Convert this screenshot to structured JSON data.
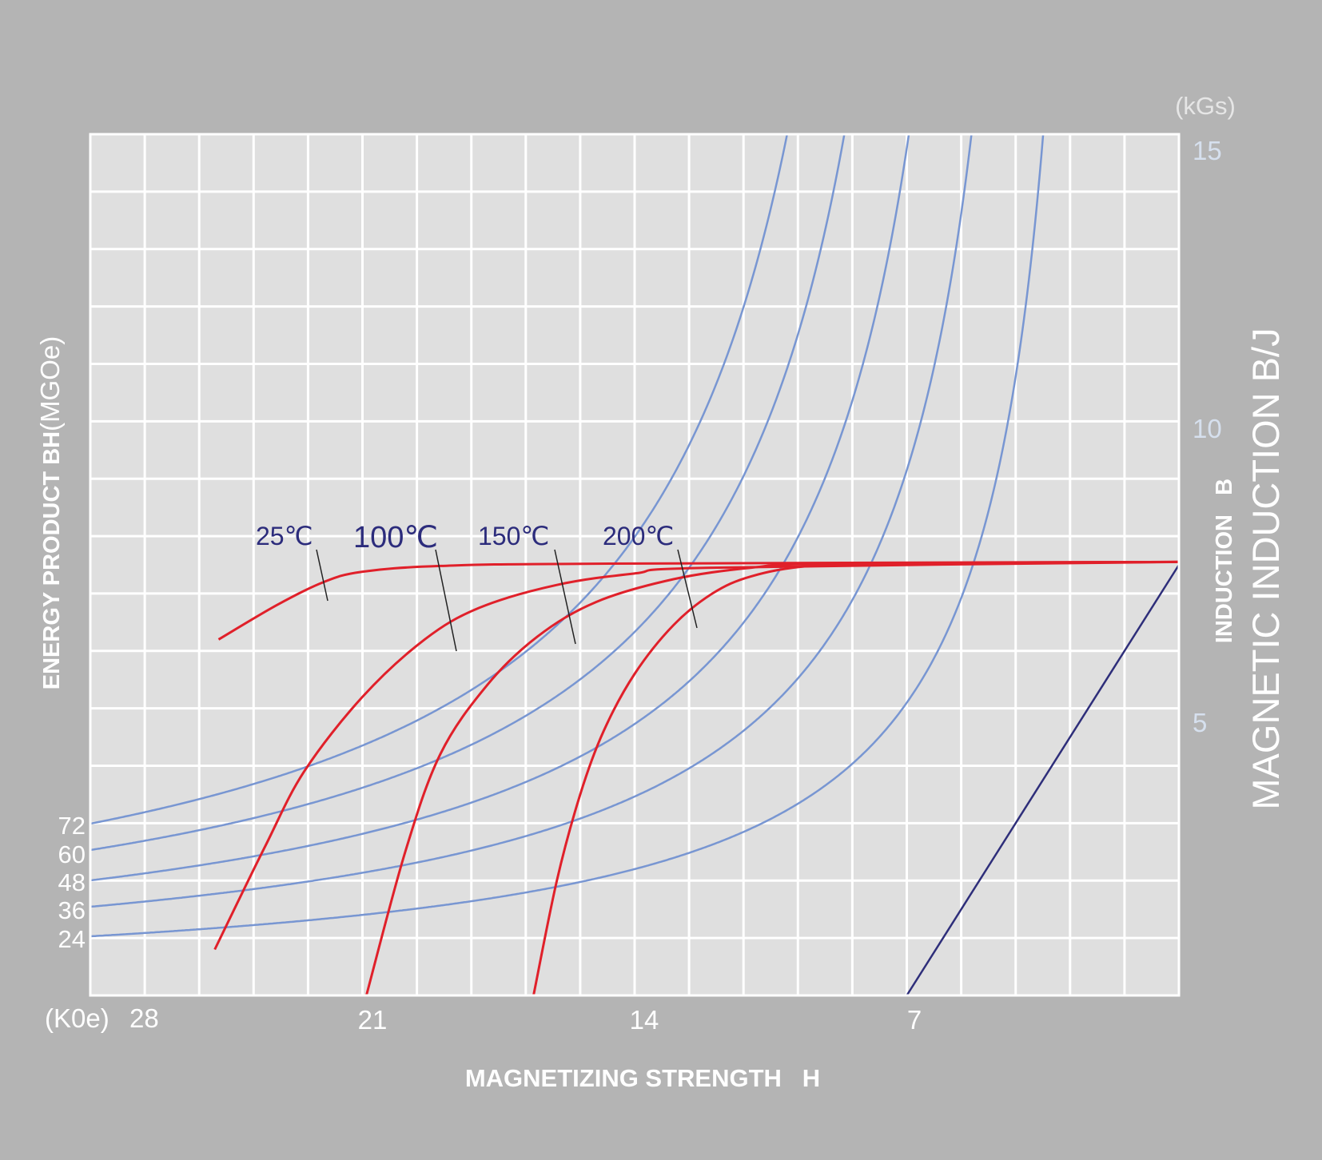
{
  "chart_data": {
    "type": "line",
    "x_axis": {
      "label": "MAGNETIZING STRENGTH   H",
      "unit_prefix": "(K0e)",
      "ticks": [
        "28",
        "21",
        "14",
        "7"
      ],
      "range": [
        28,
        0
      ],
      "reversed": true
    },
    "y_axis_right": {
      "unit": "(kGs)",
      "ticks": [
        "15",
        "10",
        "5"
      ],
      "range": [
        0,
        15
      ],
      "label_inner": "INDUCTION   B",
      "label_outer": "MAGNETIC INDUCTION B/J"
    },
    "y_axis_left": {
      "label_bold": "ENERGY PRODUCT BH",
      "label_unit": "(MGOe)",
      "ticks": [
        "72",
        "60",
        "48",
        "36",
        "24"
      ]
    },
    "grid": true,
    "energy_product_curves": [
      {
        "bh": 72,
        "color": "#7896d2"
      },
      {
        "bh": 60,
        "color": "#7896d2"
      },
      {
        "bh": 48,
        "color": "#7896d2"
      },
      {
        "bh": 36,
        "color": "#7896d2"
      },
      {
        "bh": 24,
        "color": "#7896d2"
      }
    ],
    "demagnetization_series": [
      {
        "label": "25℃",
        "color": "#e0202a",
        "points": [
          [
            24.7,
            6.2
          ],
          [
            23.2,
            6.8
          ],
          [
            22.0,
            7.2
          ],
          [
            21.0,
            7.38
          ],
          [
            19.0,
            7.48
          ],
          [
            15.0,
            7.52
          ],
          [
            0.0,
            7.55
          ]
        ]
      },
      {
        "label": "100℃",
        "color": "#e0202a",
        "points": [
          [
            24.8,
            0.8
          ],
          [
            23.5,
            2.6
          ],
          [
            22.5,
            3.9
          ],
          [
            21.0,
            5.2
          ],
          [
            19.4,
            6.2
          ],
          [
            18.0,
            6.75
          ],
          [
            16.0,
            7.15
          ],
          [
            14.0,
            7.35
          ],
          [
            12.0,
            7.45
          ],
          [
            0.0,
            7.55
          ]
        ]
      },
      {
        "label": "150℃",
        "color": "#e0202a",
        "points": [
          [
            20.9,
            0.0
          ],
          [
            19.9,
            2.5
          ],
          [
            19.0,
            4.2
          ],
          [
            17.8,
            5.4
          ],
          [
            16.5,
            6.25
          ],
          [
            15.0,
            6.85
          ],
          [
            13.0,
            7.25
          ],
          [
            11.0,
            7.45
          ],
          [
            9.0,
            7.52
          ],
          [
            0.0,
            7.55
          ]
        ]
      },
      {
        "label": "200℃",
        "color": "#e0202a",
        "points": [
          [
            16.6,
            0.0
          ],
          [
            16.0,
            2.0
          ],
          [
            15.4,
            3.5
          ],
          [
            14.8,
            4.6
          ],
          [
            14.0,
            5.6
          ],
          [
            13.0,
            6.45
          ],
          [
            12.0,
            7.0
          ],
          [
            11.0,
            7.3
          ],
          [
            9.5,
            7.48
          ],
          [
            7.0,
            7.53
          ],
          [
            0.0,
            7.55
          ]
        ]
      }
    ],
    "recoil_line": {
      "color": "#2e2e7a",
      "points": [
        [
          7.0,
          0.0
        ],
        [
          0.0,
          7.5
        ]
      ]
    }
  }
}
